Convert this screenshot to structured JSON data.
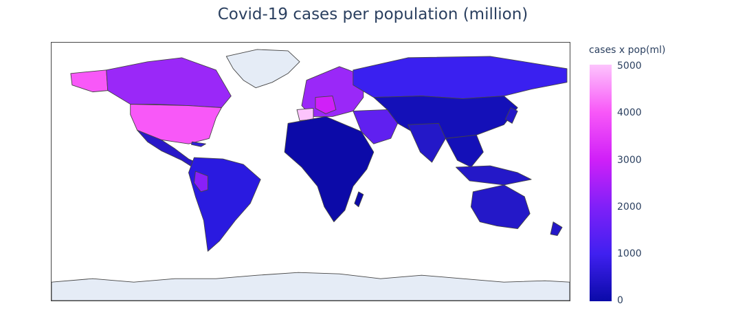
{
  "title": "Covid-19 cases per population (million)",
  "colorbar": {
    "title": "cases x pop(ml)",
    "ticks": [
      "5000",
      "4000",
      "3000",
      "2000",
      "1000",
      "0"
    ],
    "range": [
      0,
      5000
    ]
  },
  "colors": {
    "low": "#0a0aa8",
    "mid": "#4020f0",
    "high": "#fcc4fc",
    "nodata": "#e5ecf6",
    "border": "#444444"
  }
}
